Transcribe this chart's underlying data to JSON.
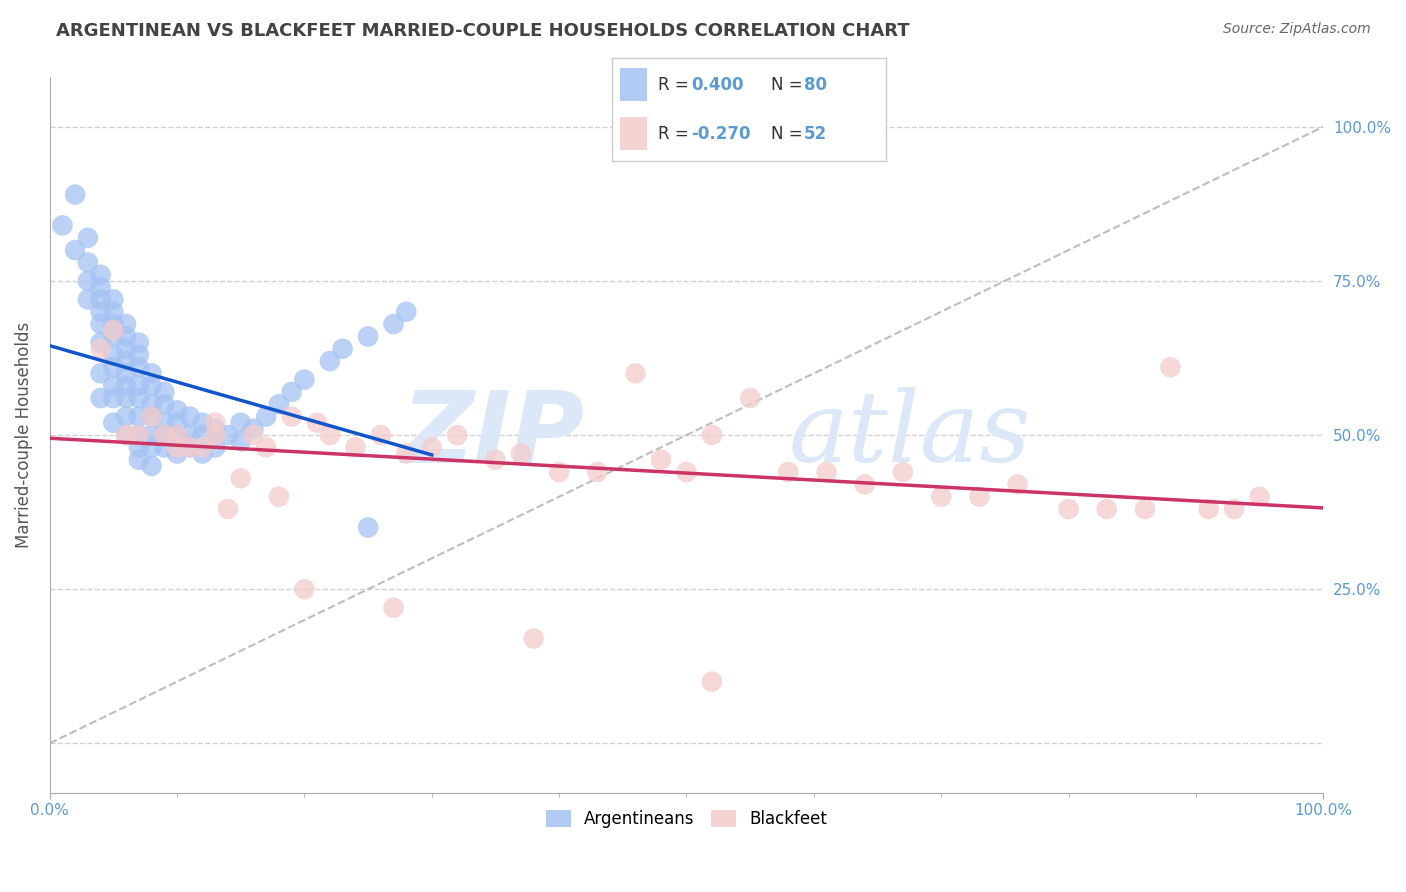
{
  "title": "ARGENTINEAN VS BLACKFEET MARRIED-COUPLE HOUSEHOLDS CORRELATION CHART",
  "source": "Source: ZipAtlas.com",
  "ylabel": "Married-couple Households",
  "r_argentinean": 0.4,
  "n_argentinean": 80,
  "r_blackfeet": -0.27,
  "n_blackfeet": 52,
  "color_argentinean": "#a4c2f4",
  "color_blackfeet": "#f4cccc",
  "line_color_argentinean": "#1155cc",
  "line_color_blackfeet": "#cc3366",
  "diagonal_color": "#b7b7b7",
  "background_color": "#ffffff",
  "grid_color": "#cccccc",
  "watermark_color": "#dce8f8",
  "title_color": "#434343",
  "legend_label_argentinean": "Argentineans",
  "legend_label_blackfeet": "Blackfeet",
  "xlim": [
    0.0,
    1.0
  ],
  "ylim": [
    -0.08,
    1.08
  ],
  "yticks": [
    0.0,
    0.25,
    0.5,
    0.75,
    1.0
  ],
  "argentinean_x": [
    0.01,
    0.02,
    0.02,
    0.03,
    0.03,
    0.03,
    0.03,
    0.04,
    0.04,
    0.04,
    0.04,
    0.04,
    0.04,
    0.04,
    0.04,
    0.05,
    0.05,
    0.05,
    0.05,
    0.05,
    0.05,
    0.05,
    0.05,
    0.05,
    0.06,
    0.06,
    0.06,
    0.06,
    0.06,
    0.06,
    0.06,
    0.06,
    0.06,
    0.07,
    0.07,
    0.07,
    0.07,
    0.07,
    0.07,
    0.07,
    0.07,
    0.07,
    0.08,
    0.08,
    0.08,
    0.08,
    0.08,
    0.08,
    0.08,
    0.09,
    0.09,
    0.09,
    0.09,
    0.09,
    0.1,
    0.1,
    0.1,
    0.1,
    0.11,
    0.11,
    0.11,
    0.12,
    0.12,
    0.12,
    0.13,
    0.13,
    0.14,
    0.15,
    0.15,
    0.16,
    0.17,
    0.18,
    0.19,
    0.2,
    0.22,
    0.23,
    0.25,
    0.25,
    0.27,
    0.28
  ],
  "argentinean_y": [
    0.84,
    0.89,
    0.8,
    0.82,
    0.78,
    0.75,
    0.72,
    0.76,
    0.74,
    0.72,
    0.7,
    0.68,
    0.65,
    0.6,
    0.56,
    0.72,
    0.7,
    0.68,
    0.66,
    0.63,
    0.61,
    0.58,
    0.56,
    0.52,
    0.68,
    0.66,
    0.64,
    0.62,
    0.6,
    0.58,
    0.56,
    0.53,
    0.5,
    0.65,
    0.63,
    0.61,
    0.58,
    0.56,
    0.53,
    0.5,
    0.48,
    0.46,
    0.6,
    0.58,
    0.55,
    0.53,
    0.5,
    0.48,
    0.45,
    0.57,
    0.55,
    0.52,
    0.5,
    0.48,
    0.54,
    0.52,
    0.5,
    0.47,
    0.53,
    0.5,
    0.48,
    0.52,
    0.5,
    0.47,
    0.51,
    0.48,
    0.5,
    0.52,
    0.49,
    0.51,
    0.53,
    0.55,
    0.57,
    0.59,
    0.62,
    0.64,
    0.66,
    0.35,
    0.68,
    0.7
  ],
  "blackfeet_x": [
    0.04,
    0.05,
    0.06,
    0.07,
    0.08,
    0.09,
    0.1,
    0.11,
    0.12,
    0.13,
    0.14,
    0.15,
    0.16,
    0.17,
    0.18,
    0.19,
    0.21,
    0.22,
    0.24,
    0.26,
    0.28,
    0.3,
    0.32,
    0.35,
    0.37,
    0.4,
    0.43,
    0.46,
    0.48,
    0.5,
    0.52,
    0.55,
    0.58,
    0.61,
    0.64,
    0.67,
    0.7,
    0.73,
    0.76,
    0.8,
    0.83,
    0.86,
    0.88,
    0.91,
    0.93,
    0.95,
    0.1,
    0.13,
    0.2,
    0.27,
    0.38,
    0.52
  ],
  "blackfeet_y": [
    0.64,
    0.67,
    0.5,
    0.5,
    0.53,
    0.5,
    0.5,
    0.48,
    0.48,
    0.52,
    0.38,
    0.43,
    0.5,
    0.48,
    0.4,
    0.53,
    0.52,
    0.5,
    0.48,
    0.5,
    0.47,
    0.48,
    0.5,
    0.46,
    0.47,
    0.44,
    0.44,
    0.6,
    0.46,
    0.44,
    0.5,
    0.56,
    0.44,
    0.44,
    0.42,
    0.44,
    0.4,
    0.4,
    0.42,
    0.38,
    0.38,
    0.38,
    0.61,
    0.38,
    0.38,
    0.4,
    0.48,
    0.5,
    0.25,
    0.22,
    0.17,
    0.1
  ]
}
